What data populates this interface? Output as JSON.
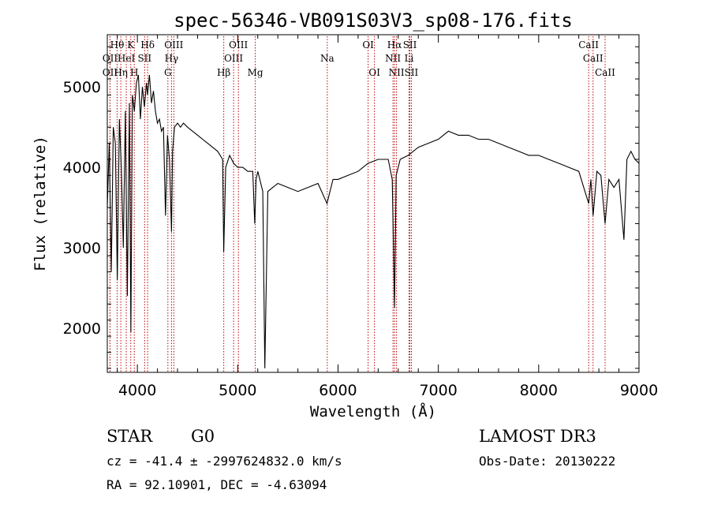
{
  "chart_data": {
    "type": "line",
    "title": "spec-56346-VB091S03V3_sp08-176.fits",
    "xlabel": "Wavelength (Å)",
    "ylabel": "Flux (relative)",
    "xlim": [
      3700,
      9000
    ],
    "ylim": [
      1450,
      5650
    ],
    "x_ticks": [
      4000,
      5000,
      6000,
      7000,
      8000,
      9000
    ],
    "x_tick_labels": [
      "4000",
      "5000",
      "6000",
      "7000",
      "8000",
      "9000"
    ],
    "y_ticks": [
      2000,
      3000,
      4000,
      5000
    ],
    "y_tick_labels": [
      "2000",
      "3000",
      "4000",
      "5000"
    ],
    "grid": false,
    "series": [
      {
        "color": "#000000",
        "x": [
          3700,
          3720,
          3740,
          3760,
          3780,
          3800,
          3820,
          3840,
          3860,
          3880,
          3900,
          3920,
          3935,
          3950,
          3970,
          3990,
          4010,
          4030,
          4050,
          4070,
          4090,
          4101,
          4120,
          4140,
          4160,
          4180,
          4200,
          4220,
          4240,
          4260,
          4280,
          4300,
          4320,
          4340,
          4350,
          4370,
          4400,
          4430,
          4460,
          4500,
          4550,
          4600,
          4650,
          4700,
          4750,
          4800,
          4850,
          4861,
          4880,
          4920,
          4960,
          5000,
          5050,
          5100,
          5150,
          5170,
          5183,
          5200,
          5230,
          5250,
          5270,
          5300,
          5350,
          5400,
          5500,
          5600,
          5700,
          5800,
          5890,
          5950,
          6000,
          6100,
          6200,
          6300,
          6400,
          6500,
          6540,
          6563,
          6580,
          6620,
          6700,
          6800,
          6900,
          7000,
          7100,
          7200,
          7300,
          7400,
          7500,
          7600,
          7700,
          7800,
          7900,
          8000,
          8100,
          8200,
          8300,
          8400,
          8498,
          8520,
          8542,
          8580,
          8620,
          8662,
          8700,
          8750,
          8800,
          8850,
          8880,
          8920,
          8960,
          9000
        ],
        "values": [
          3500,
          4300,
          2700,
          4500,
          4300,
          2600,
          4600,
          4000,
          3000,
          4700,
          2400,
          4800,
          1950,
          4900,
          4700,
          5050,
          5150,
          4600,
          5000,
          4750,
          5050,
          4900,
          5150,
          4800,
          4950,
          4700,
          4550,
          4600,
          4450,
          4500,
          3400,
          4400,
          4100,
          3200,
          4200,
          4500,
          4550,
          4500,
          4550,
          4500,
          4450,
          4400,
          4350,
          4300,
          4250,
          4200,
          4100,
          2950,
          4000,
          4150,
          4050,
          4000,
          4000,
          3950,
          3950,
          3300,
          3850,
          3950,
          3800,
          3700,
          1500,
          3700,
          3750,
          3800,
          3750,
          3700,
          3750,
          3800,
          3550,
          3850,
          3850,
          3900,
          3950,
          4050,
          4100,
          4100,
          3850,
          2250,
          3900,
          4100,
          4150,
          4250,
          4300,
          4350,
          4450,
          4400,
          4400,
          4350,
          4350,
          4300,
          4250,
          4200,
          4150,
          4150,
          4100,
          4050,
          4000,
          3950,
          3550,
          3850,
          3400,
          3950,
          3900,
          3300,
          3850,
          3750,
          3850,
          3100,
          4100,
          4200,
          4100,
          4050
        ]
      }
    ],
    "spectral_lines": [
      {
        "label": "Hθ",
        "x": 3798,
        "row": 1
      },
      {
        "label": "OII",
        "x": 3727,
        "row": 2
      },
      {
        "label": "HeI",
        "x": 3889,
        "row": 2
      },
      {
        "label": "OII",
        "x": 3727,
        "row": 3
      },
      {
        "label": "Hη",
        "x": 3835,
        "row": 3
      },
      {
        "label": "K",
        "x": 3934,
        "row": 1
      },
      {
        "label": "SII",
        "x": 4072,
        "row": 2
      },
      {
        "label": "H",
        "x": 3969,
        "row": 3
      },
      {
        "label": "Hδ",
        "x": 4102,
        "row": 1
      },
      {
        "label": "OIII",
        "x": 4363,
        "row": 1
      },
      {
        "label": "Hγ",
        "x": 4340,
        "row": 2
      },
      {
        "label": "G",
        "x": 4304,
        "row": 3
      },
      {
        "label": "OIII",
        "x": 5007,
        "row": 1
      },
      {
        "label": "OIII",
        "x": 4959,
        "row": 2
      },
      {
        "label": "Hβ",
        "x": 4861,
        "row": 3
      },
      {
        "label": "Mg",
        "x": 5175,
        "row": 3
      },
      {
        "label": "Na",
        "x": 5893,
        "row": 2
      },
      {
        "label": "OI",
        "x": 6300,
        "row": 1
      },
      {
        "label": "OI",
        "x": 6363,
        "row": 3
      },
      {
        "label": "Hα",
        "x": 6563,
        "row": 1
      },
      {
        "label": "NII",
        "x": 6548,
        "row": 2
      },
      {
        "label": "NII",
        "x": 6583,
        "row": 3
      },
      {
        "label": "SII",
        "x": 6716,
        "row": 1
      },
      {
        "label": "Li",
        "x": 6708,
        "row": 2
      },
      {
        "label": "SII",
        "x": 6731,
        "row": 3
      },
      {
        "label": "CaII",
        "x": 8498,
        "row": 1
      },
      {
        "label": "CaII",
        "x": 8542,
        "row": 2
      },
      {
        "label": "CaII",
        "x": 8662,
        "row": 3
      }
    ]
  },
  "info": {
    "object_class": "STAR",
    "subclass": "G0",
    "survey": "LAMOST DR3",
    "cz": "cz = -41.4 ± -2997624832.0 km/s",
    "obs_date": "Obs-Date: 20130222",
    "coords": "RA =  92.10901, DEC =  -4.63094"
  },
  "colors": {
    "spectrum": "#000000",
    "line_markers": "#c00000",
    "background": "#ffffff"
  }
}
